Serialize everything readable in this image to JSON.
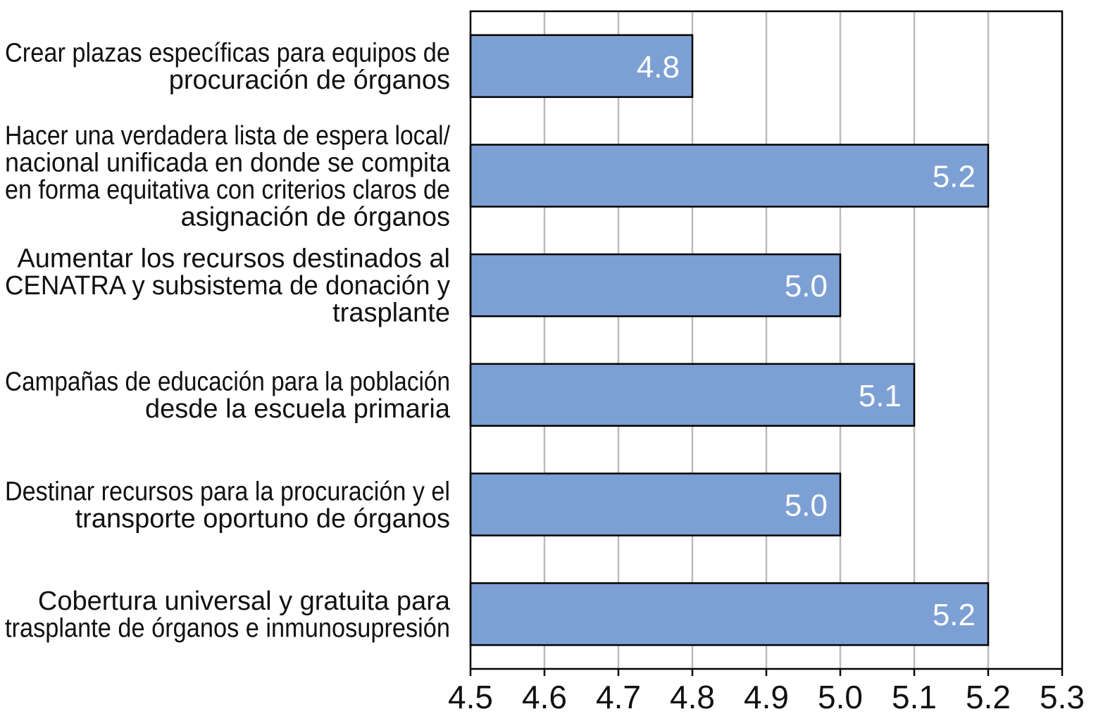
{
  "chart_data": {
    "type": "bar",
    "orientation": "horizontal",
    "categories": [
      [
        "Crear plazas específicas para equipos de",
        "procuración de órganos"
      ],
      [
        "Hacer una verdadera lista de espera local/",
        "nacional unificada en donde se compita",
        "en forma equitativa con criterios claros de",
        "asignación de órganos"
      ],
      [
        "Aumentar los recursos destinados al",
        "CENATRA y subsistema de donación y",
        "trasplante"
      ],
      [
        "Campañas de educación para la población",
        "desde la escuela primaria"
      ],
      [
        "Destinar recursos para la procuración y el",
        "transporte oportuno de órganos"
      ],
      [
        "Cobertura universal y gratuita para",
        "trasplante de órganos e inmunosupresión"
      ]
    ],
    "values": [
      4.8,
      5.2,
      5.0,
      5.1,
      5.0,
      5.2
    ],
    "data_labels": [
      "4.8",
      "5.2",
      "5.0",
      "5.1",
      "5.0",
      "5.2"
    ],
    "xlim": [
      4.5,
      5.3
    ],
    "x_ticks": [
      "4.5",
      "4.6",
      "4.7",
      "4.8",
      "4.9",
      "5.0",
      "5.1",
      "5.2",
      "5.3"
    ],
    "title": "",
    "xlabel": "",
    "ylabel": "",
    "grid": "vertical",
    "legend": "none",
    "colors": {
      "bar": "#7da0d4",
      "bar_edge": "#000000",
      "grid": "#bbbbbb",
      "axis": "#000000"
    }
  }
}
